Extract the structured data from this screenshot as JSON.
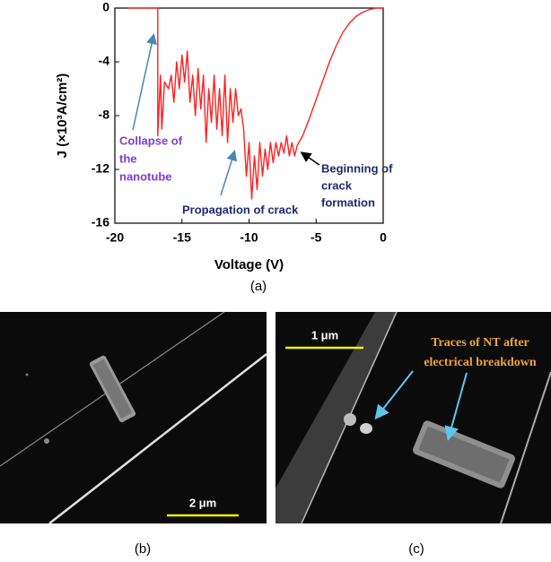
{
  "chart_data": {
    "type": "line",
    "x_label": "Voltage (V)",
    "y_label": "J (×10³A/cm²)",
    "xlim": [
      -20,
      0
    ],
    "ylim": [
      -16,
      0
    ],
    "xticks": [
      -20,
      -15,
      -10,
      -5,
      0
    ],
    "yticks": [
      0,
      -4,
      -8,
      -12,
      -16
    ],
    "x": [
      -19,
      -16.8,
      -16.8,
      -16.6,
      -16.5,
      -16.3,
      -16,
      -15.8,
      -15.6,
      -15.4,
      -15.2,
      -15,
      -14.8,
      -14.6,
      -14.4,
      -14.2,
      -14,
      -13.8,
      -13.6,
      -13.4,
      -13.2,
      -13,
      -12.8,
      -12.6,
      -12.4,
      -12.2,
      -12,
      -11.8,
      -11.6,
      -11.4,
      -11.2,
      -11,
      -10.8,
      -10.6,
      -10.4,
      -10.2,
      -10,
      -9.8,
      -9.6,
      -9.4,
      -9.2,
      -9,
      -8.8,
      -8.6,
      -8.4,
      -8.2,
      -8,
      -7.8,
      -7.6,
      -7.4,
      -7.2,
      -7,
      -6.8,
      -6.6,
      -6.4,
      -6,
      -5.5,
      -5,
      -4.5,
      -4,
      -3.5,
      -3,
      -2.5,
      -2,
      -1.5,
      -1,
      -0.5,
      0
    ],
    "series": [
      {
        "name": "J",
        "color": "#ff2020",
        "values": [
          0,
          0,
          -9.5,
          -5,
          -9,
          -5.5,
          -6,
          -5,
          -7,
          -4,
          -6,
          -3.5,
          -5.5,
          -3.2,
          -7,
          -5,
          -8,
          -4.5,
          -7.5,
          -5,
          -10,
          -6,
          -8.5,
          -5,
          -9,
          -6,
          -9.5,
          -5,
          -10,
          -6,
          -8.5,
          -6,
          -8,
          -7.5,
          -9,
          -12.5,
          -10,
          -14.2,
          -11,
          -13.5,
          -10,
          -12.5,
          -10.5,
          -12,
          -10,
          -11.5,
          -10,
          -11,
          -10,
          -10.8,
          -9.5,
          -11,
          -10,
          -11,
          -10.2,
          -9.5,
          -8.2,
          -6.8,
          -5.4,
          -4,
          -2.8,
          -1.8,
          -1.1,
          -0.6,
          -0.3,
          -0.1,
          0,
          0
        ]
      }
    ],
    "annotations": [
      {
        "lines": [
          "Collapse of",
          "the",
          "nanotube"
        ]
      },
      {
        "lines": [
          "Propagation of crack"
        ]
      },
      {
        "lines": [
          "Beginning of",
          "crack",
          "formation"
        ]
      }
    ]
  },
  "panel_labels": [
    "(a)",
    "(b)",
    "(c)"
  ],
  "images": [
    {
      "scale_bar": "2 μm"
    },
    {
      "scale_bar": "1 μm",
      "caption_lines": [
        "Traces of NT after",
        "electrical breakdown"
      ]
    }
  ]
}
